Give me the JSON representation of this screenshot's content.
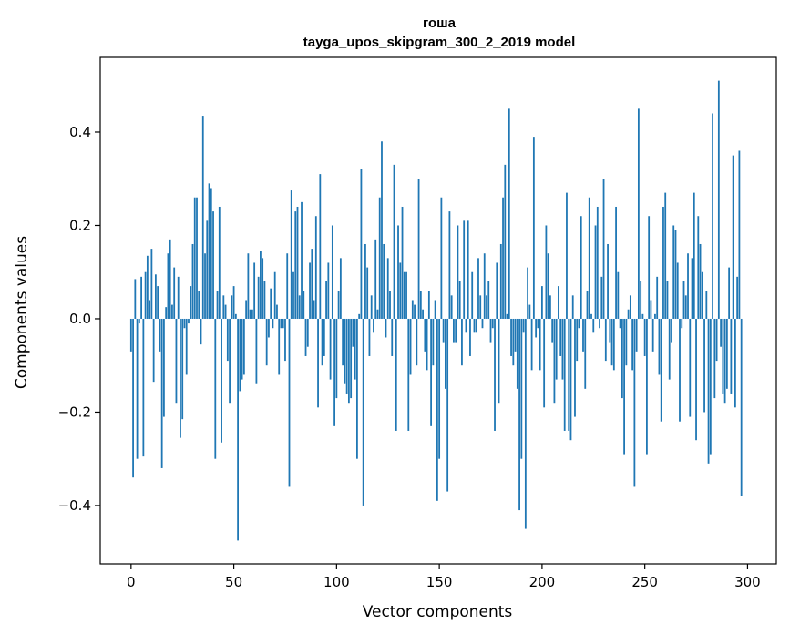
{
  "chart_data": {
    "type": "bar",
    "title": "гоша",
    "subtitle": "tayga_upos_skipgram_300_2_2019 model",
    "xlabel": "Vector components",
    "ylabel": "Components values",
    "xlim": [
      -15,
      314
    ],
    "ylim": [
      -0.525,
      0.56
    ],
    "xticks": [
      0,
      50,
      100,
      150,
      200,
      250,
      300
    ],
    "yticks": [
      -0.4,
      -0.2,
      0.0,
      0.2,
      0.4
    ],
    "ytick_labels": [
      "−0.4",
      "−0.2",
      "0.0",
      "0.2",
      "0.4"
    ],
    "xtick_labels": [
      "0",
      "50",
      "100",
      "150",
      "200",
      "250",
      "300"
    ],
    "grid": false,
    "bar_color": "#1f77b4",
    "values": [
      -0.07,
      -0.34,
      0.085,
      -0.3,
      -0.01,
      0.09,
      -0.295,
      0.1,
      0.135,
      0.04,
      0.15,
      -0.135,
      0.095,
      0.07,
      -0.07,
      -0.32,
      -0.21,
      0.025,
      0.14,
      0.17,
      0.03,
      0.11,
      -0.18,
      0.09,
      -0.255,
      -0.215,
      -0.02,
      -0.12,
      -0.01,
      0.07,
      0.16,
      0.26,
      0.26,
      0.06,
      -0.055,
      0.435,
      0.14,
      0.21,
      0.29,
      0.28,
      0.23,
      -0.3,
      0.06,
      0.24,
      -0.265,
      0.05,
      0.03,
      -0.09,
      -0.18,
      0.05,
      0.07,
      0.01,
      -0.475,
      -0.155,
      -0.13,
      -0.12,
      0.04,
      0.14,
      0.02,
      0.02,
      0.12,
      -0.14,
      0.09,
      0.145,
      0.13,
      0.08,
      -0.1,
      -0.04,
      0.065,
      -0.02,
      0.1,
      0.03,
      -0.12,
      -0.02,
      -0.02,
      -0.09,
      0.14,
      -0.36,
      0.275,
      0.1,
      0.23,
      0.24,
      0.05,
      0.25,
      0.06,
      -0.08,
      -0.06,
      0.12,
      0.15,
      0.04,
      0.22,
      -0.19,
      0.31,
      -0.1,
      -0.08,
      0.08,
      0.12,
      -0.13,
      0.2,
      -0.23,
      -0.17,
      0.06,
      0.13,
      -0.1,
      -0.14,
      -0.16,
      -0.18,
      -0.17,
      -0.06,
      -0.13,
      -0.3,
      0.01,
      0.32,
      -0.4,
      0.16,
      0.11,
      -0.08,
      0.05,
      -0.03,
      0.17,
      0.02,
      0.26,
      0.38,
      0.16,
      -0.04,
      0.13,
      0.06,
      -0.08,
      0.33,
      -0.24,
      0.2,
      0.12,
      0.24,
      0.1,
      0.1,
      -0.24,
      -0.12,
      0.04,
      0.03,
      -0.1,
      0.3,
      0.06,
      0.02,
      -0.07,
      -0.11,
      0.06,
      -0.23,
      -0.1,
      0.04,
      -0.39,
      -0.3,
      0.26,
      -0.05,
      -0.15,
      -0.37,
      0.23,
      0.05,
      -0.05,
      -0.05,
      0.2,
      0.08,
      -0.1,
      0.21,
      -0.03,
      0.21,
      -0.08,
      0.1,
      -0.03,
      -0.03,
      0.13,
      0.05,
      -0.02,
      0.14,
      0.05,
      0.08,
      -0.05,
      -0.02,
      -0.24,
      0.12,
      -0.18,
      0.16,
      0.26,
      0.33,
      0.01,
      0.45,
      -0.08,
      -0.1,
      -0.07,
      -0.15,
      -0.41,
      -0.3,
      -0.03,
      -0.45,
      0.11,
      0.03,
      -0.11,
      0.39,
      -0.04,
      -0.02,
      -0.11,
      0.07,
      -0.19,
      0.2,
      0.14,
      0.05,
      -0.05,
      -0.18,
      -0.13,
      0.07,
      -0.08,
      -0.13,
      -0.24,
      0.27,
      -0.24,
      -0.26,
      0.05,
      -0.21,
      -0.09,
      -0.02,
      0.22,
      -0.07,
      -0.15,
      0.06,
      0.26,
      0.01,
      -0.03,
      0.2,
      0.24,
      -0.02,
      0.09,
      0.3,
      -0.09,
      0.16,
      -0.05,
      -0.1,
      -0.11,
      0.24,
      0.1,
      -0.02,
      -0.17,
      -0.29,
      -0.1,
      0.02,
      0.05,
      -0.11,
      -0.36,
      -0.07,
      0.45,
      0.08,
      0.01,
      -0.08,
      -0.29,
      0.22,
      0.04,
      -0.07,
      0.01,
      0.09,
      -0.12,
      -0.22,
      0.24,
      0.27,
      0.08,
      -0.13,
      -0.05,
      0.2,
      0.19,
      0.12,
      -0.22,
      -0.02,
      0.08,
      0.05,
      0.14,
      -0.21,
      0.13,
      0.27,
      -0.26,
      0.22,
      0.16,
      0.1,
      -0.2,
      0.06,
      -0.31,
      -0.29,
      0.44,
      -0.17,
      -0.09,
      0.51,
      -0.06,
      -0.16,
      -0.18,
      -0.15,
      0.11,
      -0.16,
      0.35,
      -0.19,
      0.09,
      0.36,
      -0.38
    ]
  }
}
